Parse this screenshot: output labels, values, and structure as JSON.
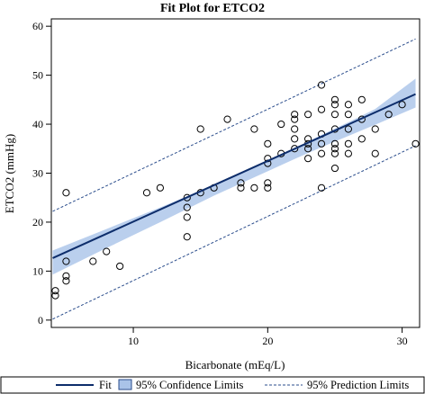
{
  "chart_data": {
    "type": "scatter",
    "title": "Fit Plot for ETCO2",
    "xlabel": "Bicarbonate (mEq/L)",
    "ylabel": "ETCO2 (mmHg)",
    "xlim": [
      3.9,
      31.3
    ],
    "ylim": [
      -1.5,
      61.5
    ],
    "xticks": [
      10,
      20,
      30
    ],
    "yticks": [
      0,
      10,
      20,
      30,
      40,
      50,
      60
    ],
    "grid": false,
    "colors": {
      "fit": "#0d2d6b",
      "confidence_band": "#a9c3e8",
      "prediction": "#2b4d8c",
      "points": "#000000"
    },
    "fit": {
      "intercept": 7.7,
      "slope": 1.24
    },
    "confidence_limits": {
      "x": [
        4,
        8,
        12,
        16,
        18,
        20,
        22,
        24,
        26,
        28,
        31
      ],
      "lower": [
        9.3,
        14.7,
        20.0,
        25.4,
        27.9,
        30.4,
        32.9,
        35.3,
        37.6,
        39.9,
        43.4
      ],
      "upper": [
        14.2,
        18.6,
        23.0,
        27.6,
        29.9,
        32.4,
        35.1,
        37.8,
        40.4,
        43.1,
        49.3
      ]
    },
    "prediction_limits": {
      "x": [
        4,
        31
      ],
      "lower": [
        0.2,
        35.6
      ],
      "upper": [
        22.2,
        57.4
      ]
    },
    "points": [
      [
        4.2,
        6
      ],
      [
        4.2,
        5
      ],
      [
        5,
        26
      ],
      [
        5,
        12
      ],
      [
        5,
        9
      ],
      [
        5,
        8
      ],
      [
        7,
        12
      ],
      [
        8,
        14
      ],
      [
        9,
        11
      ],
      [
        11,
        26
      ],
      [
        12,
        27
      ],
      [
        14,
        17
      ],
      [
        14,
        21
      ],
      [
        14,
        23
      ],
      [
        14,
        25
      ],
      [
        15,
        26
      ],
      [
        15,
        39
      ],
      [
        16,
        27
      ],
      [
        17,
        41
      ],
      [
        18,
        28
      ],
      [
        18,
        27
      ],
      [
        19,
        27
      ],
      [
        19,
        39
      ],
      [
        20,
        36
      ],
      [
        20,
        33
      ],
      [
        20,
        32
      ],
      [
        20,
        28
      ],
      [
        20,
        27
      ],
      [
        21,
        40
      ],
      [
        21,
        34
      ],
      [
        22,
        42
      ],
      [
        22,
        41
      ],
      [
        22,
        39
      ],
      [
        22,
        37
      ],
      [
        22,
        35
      ],
      [
        23,
        37
      ],
      [
        23,
        36
      ],
      [
        23,
        35
      ],
      [
        23,
        33
      ],
      [
        23,
        42
      ],
      [
        24,
        48
      ],
      [
        24,
        43
      ],
      [
        24,
        38
      ],
      [
        24,
        36
      ],
      [
        24,
        34
      ],
      [
        24,
        27
      ],
      [
        25,
        45
      ],
      [
        25,
        44
      ],
      [
        25,
        42
      ],
      [
        25,
        39
      ],
      [
        25,
        36
      ],
      [
        25,
        35
      ],
      [
        25,
        34
      ],
      [
        25,
        31
      ],
      [
        26,
        44
      ],
      [
        26,
        42
      ],
      [
        26,
        39
      ],
      [
        26,
        36
      ],
      [
        26,
        34
      ],
      [
        27,
        45
      ],
      [
        27,
        41
      ],
      [
        27,
        37
      ],
      [
        28,
        39
      ],
      [
        28,
        34
      ],
      [
        29,
        42
      ],
      [
        30,
        44
      ],
      [
        31,
        36
      ]
    ],
    "legend": {
      "position": "bottom",
      "items": [
        {
          "key": "fit",
          "label": "Fit"
        },
        {
          "key": "confidence",
          "label": "95% Confidence Limits"
        },
        {
          "key": "prediction",
          "label": "95% Prediction Limits"
        }
      ]
    }
  }
}
